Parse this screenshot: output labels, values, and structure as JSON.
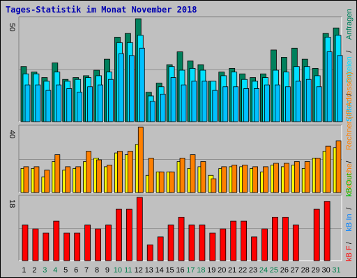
{
  "title": "Tages-Statistik im Monat November 2018",
  "colors": {
    "background": "#c0c0c0",
    "panel": "#c0c0c0",
    "title": "#0000b0",
    "anfragen": "#00805c",
    "dateien": "#00e0ff",
    "seiten": "#00c0ff",
    "besuche": "#ffff00",
    "rechner": "#ff8000",
    "kb_in": "#ff0000",
    "kb_out": "#ff0000",
    "weekend_label": "#00804c"
  },
  "chart_data": [
    {
      "type": "bar",
      "panel": "top",
      "ymax_label": "50",
      "categories": [
        "1",
        "2",
        "3",
        "4",
        "5",
        "6",
        "7",
        "8",
        "9",
        "10",
        "11",
        "12",
        "13",
        "14",
        "15",
        "16",
        "17",
        "18",
        "19",
        "20",
        "21",
        "22",
        "23",
        "24",
        "25",
        "26",
        "27",
        "28",
        "29",
        "30",
        "31"
      ],
      "series": [
        {
          "name": "Anfragen",
          "values": [
            30,
            27,
            24,
            32,
            23,
            24,
            25,
            28,
            34,
            46,
            48,
            56,
            16,
            21,
            31,
            38,
            33,
            31,
            22,
            27,
            29,
            26,
            24,
            26,
            39,
            35,
            40,
            34,
            29,
            48,
            51
          ]
        },
        {
          "name": "Dateien",
          "values": [
            26,
            26,
            22,
            27,
            22,
            23,
            24,
            25,
            27,
            43,
            43,
            47,
            14,
            19,
            30,
            28,
            29,
            28,
            22,
            25,
            27,
            23,
            22,
            24,
            28,
            27,
            30,
            30,
            25,
            46,
            47
          ]
        },
        {
          "name": "Seiten",
          "values": [
            20,
            20,
            17,
            20,
            18,
            16,
            19,
            20,
            23,
            37,
            36,
            40,
            11,
            15,
            24,
            20,
            22,
            22,
            17,
            19,
            19,
            18,
            18,
            20,
            20,
            19,
            22,
            23,
            19,
            38,
            36
          ]
        }
      ],
      "axis_label": "Anfragen / Dateien / Seiten"
    },
    {
      "type": "bar",
      "panel": "middle",
      "ymax_label": "40",
      "categories": [
        "1",
        "2",
        "3",
        "4",
        "5",
        "6",
        "7",
        "8",
        "9",
        "10",
        "11",
        "12",
        "13",
        "14",
        "15",
        "16",
        "17",
        "18",
        "19",
        "20",
        "21",
        "22",
        "23",
        "24",
        "25",
        "26",
        "27",
        "28",
        "29",
        "30",
        "31"
      ],
      "series": [
        {
          "name": "Besuche",
          "values": [
            14,
            14,
            9,
            18,
            13,
            14,
            18,
            20,
            15,
            23,
            22,
            28,
            10,
            12,
            12,
            18,
            14,
            15,
            10,
            14,
            15,
            15,
            14,
            12,
            16,
            15,
            16,
            14,
            20,
            24,
            26
          ]
        },
        {
          "name": "Rechner",
          "values": [
            15,
            15,
            13,
            22,
            15,
            15,
            24,
            19,
            16,
            24,
            24,
            38,
            20,
            12,
            12,
            20,
            22,
            18,
            8,
            15,
            16,
            16,
            15,
            15,
            17,
            17,
            18,
            18,
            20,
            27,
            30
          ]
        }
      ],
      "axis_label": "Besuche / Rechner (IP-Adressen)"
    },
    {
      "type": "bar",
      "panel": "bottom",
      "ymax_label": "18",
      "categories": [
        "1",
        "2",
        "3",
        "4",
        "5",
        "6",
        "7",
        "8",
        "9",
        "10",
        "11",
        "12",
        "13",
        "14",
        "15",
        "16",
        "17",
        "18",
        "19",
        "20",
        "21",
        "22",
        "23",
        "24",
        "25",
        "26",
        "27",
        "28",
        "29",
        "30",
        "31"
      ],
      "series": [
        {
          "name": "kB F",
          "values": [
            9,
            8,
            7,
            10,
            7,
            7,
            9,
            8,
            9,
            13,
            13,
            16,
            4,
            6,
            9,
            11,
            9,
            9,
            7,
            8,
            10,
            10,
            6,
            8,
            11,
            11,
            9,
            0,
            13,
            15,
            0
          ]
        }
      ],
      "axis_label": "kB F / kB In / kB Out"
    }
  ],
  "legend_right_top": [
    {
      "text": "Seiten",
      "color": "#00c0ff"
    },
    {
      "text": " / ",
      "color": "#000000"
    },
    {
      "text": "Dateien",
      "color": "#00e0ff"
    },
    {
      "text": " / ",
      "color": "#000000"
    },
    {
      "text": "Anfragen",
      "color": "#00805c"
    }
  ],
  "legend_right_middle": [
    {
      "text": "Besuche",
      "color": "#ff8000"
    },
    {
      "text": " / ",
      "color": "#000000"
    },
    {
      "text": "Rechner (IP-Adressen)",
      "color": "#ff8000"
    }
  ],
  "legend_right_bottom": [
    {
      "text": "kB F",
      "color": "#ff0000"
    },
    {
      "text": " / ",
      "color": "#000000"
    },
    {
      "text": "kB In",
      "color": "#0080ff"
    },
    {
      "text": " / ",
      "color": "#000000"
    },
    {
      "text": "kB Out",
      "color": "#00c000"
    }
  ],
  "weekend_days": [
    "3",
    "4",
    "10",
    "11",
    "17",
    "18",
    "24",
    "25",
    "31"
  ]
}
